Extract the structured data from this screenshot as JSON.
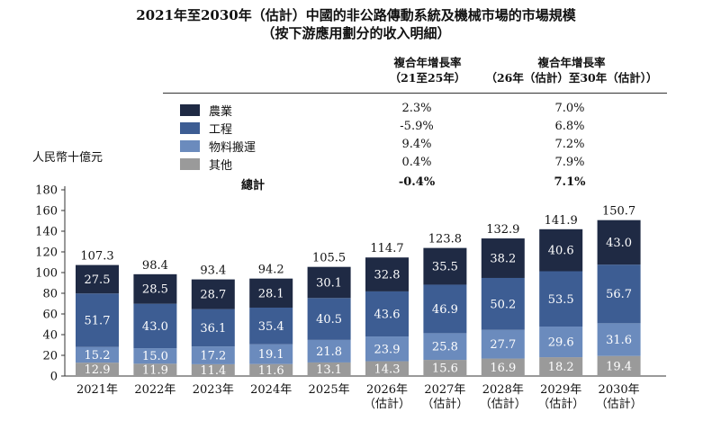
{
  "title": "2021年至2030年（估計）中國的非公路傳動系統及機械市場的市場規模",
  "subtitle": "（按下游應用劃分的收入明細）",
  "cagr_header_1": [
    "複合年增長率",
    "（21至25年）"
  ],
  "cagr_header_2": [
    "複合年增長率",
    "（26年（估計）至30年（估計））"
  ],
  "legend": [
    {
      "name": "農業",
      "cagr1": "2.3%",
      "cagr2": "7.0%",
      "color": "#1f2a44"
    },
    {
      "name": "工程",
      "cagr1": "-5.9%",
      "cagr2": "6.8%",
      "color": "#3d5d93"
    },
    {
      "name": "物料搬運",
      "cagr1": "9.4%",
      "cagr2": "7.2%",
      "color": "#6b8bbd"
    },
    {
      "name": "其他",
      "cagr1": "0.4%",
      "cagr2": "7.9%",
      "color": "#9a9a9a"
    }
  ],
  "total_row": {
    "name": "總計",
    "cagr1": "-0.4%",
    "cagr2": "7.1%"
  },
  "unit_label": "人民幣十億元",
  "chart_data": {
    "type": "bar",
    "stacked": true,
    "categories": [
      "2021年",
      "2022年",
      "2023年",
      "2024年",
      "2025年",
      "2026年\n（估計）",
      "2027年\n（估計）",
      "2028年\n（估計）",
      "2029年\n（估計）",
      "2030年\n（估計）"
    ],
    "series": [
      {
        "name": "其他",
        "values": [
          12.9,
          11.9,
          11.4,
          11.6,
          13.1,
          14.3,
          15.6,
          16.9,
          18.2,
          19.4
        ],
        "color": "#9a9a9a"
      },
      {
        "name": "物料搬運",
        "values": [
          15.2,
          15.0,
          17.2,
          19.1,
          21.8,
          23.9,
          25.8,
          27.7,
          29.6,
          31.6
        ],
        "color": "#6b8bbd"
      },
      {
        "name": "工程",
        "values": [
          51.7,
          43.0,
          36.1,
          35.4,
          40.5,
          43.6,
          46.9,
          50.2,
          53.5,
          56.7
        ],
        "color": "#3d5d93"
      },
      {
        "name": "農業",
        "values": [
          27.5,
          28.5,
          28.7,
          28.1,
          30.1,
          32.8,
          35.5,
          38.2,
          40.6,
          43.0
        ],
        "color": "#1f2a44"
      }
    ],
    "totals": [
      107.3,
      98.4,
      93.4,
      94.2,
      105.5,
      114.7,
      123.8,
      132.9,
      141.9,
      150.7
    ],
    "yticks": [
      0,
      20,
      40,
      60,
      80,
      100,
      120,
      140,
      160,
      180
    ],
    "ylim": [
      0,
      180
    ],
    "ylabel": "人民幣十億元"
  }
}
